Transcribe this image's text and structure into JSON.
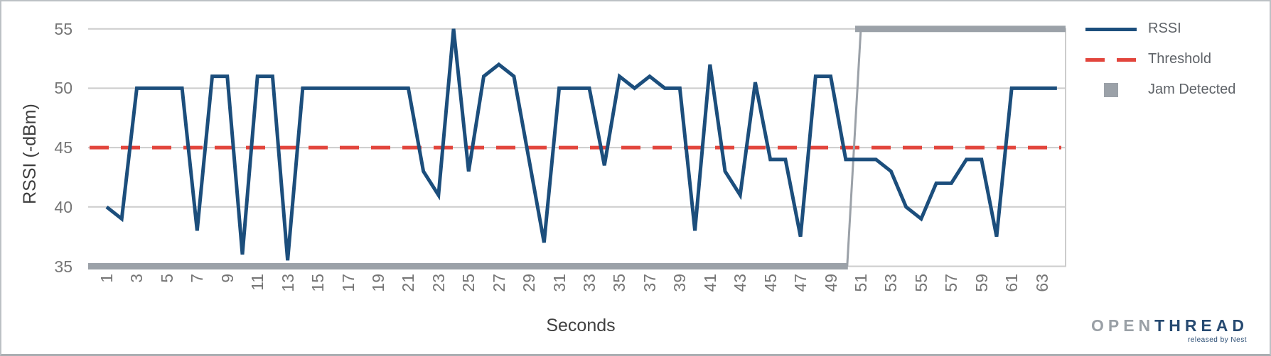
{
  "chart_data": {
    "type": "line",
    "title": "",
    "xlabel": "Seconds",
    "ylabel": "RSSI (-dBm)",
    "ylim": [
      35,
      55
    ],
    "y_ticks": [
      55,
      50,
      45,
      40,
      35
    ],
    "x_tick_labels": [
      1,
      3,
      5,
      7,
      9,
      11,
      13,
      15,
      17,
      19,
      21,
      23,
      25,
      27,
      29,
      31,
      33,
      35,
      37,
      39,
      41,
      43,
      45,
      47,
      49,
      51,
      53,
      55,
      57,
      59,
      61,
      63
    ],
    "grid": true,
    "legend_position": "right",
    "x": [
      1,
      2,
      3,
      4,
      5,
      6,
      7,
      8,
      9,
      10,
      11,
      12,
      13,
      14,
      15,
      16,
      17,
      18,
      19,
      20,
      21,
      22,
      23,
      24,
      25,
      26,
      27,
      28,
      29,
      30,
      31,
      32,
      33,
      34,
      35,
      36,
      37,
      38,
      39,
      40,
      41,
      42,
      43,
      44,
      45,
      46,
      47,
      48,
      49,
      50,
      51,
      52,
      53,
      54,
      55,
      56,
      57,
      58,
      59,
      60,
      61,
      62,
      63,
      64
    ],
    "series": [
      {
        "name": "RSSI",
        "type": "line",
        "color": "#1c4e7c",
        "values": [
          40,
          39,
          50,
          50,
          50,
          50,
          38,
          51,
          51,
          36,
          51,
          51,
          35.5,
          50,
          50,
          50,
          50,
          50,
          50,
          50,
          50,
          43,
          41,
          55,
          43,
          51,
          52,
          51,
          44,
          37,
          50,
          50,
          50,
          43.5,
          51,
          50,
          51,
          50,
          50,
          38,
          52,
          43,
          41,
          50.5,
          44,
          44,
          37.5,
          51,
          51,
          44,
          44,
          44,
          43,
          40,
          39,
          42,
          42,
          44,
          44,
          37.5,
          50,
          50,
          50,
          50
        ]
      },
      {
        "name": "Threshold",
        "type": "line",
        "style": "dashed",
        "color": "#e2453c",
        "values": [
          45,
          45,
          45,
          45,
          45,
          45,
          45,
          45,
          45,
          45,
          45,
          45,
          45,
          45,
          45,
          45,
          45,
          45,
          45,
          45,
          45,
          45,
          45,
          45,
          45,
          45,
          45,
          45,
          45,
          45,
          45,
          45,
          45,
          45,
          45,
          45,
          45,
          45,
          45,
          45,
          45,
          45,
          45,
          45,
          45,
          45,
          45,
          45,
          45,
          45,
          45,
          45,
          45,
          45,
          45,
          45,
          45,
          45,
          45,
          45,
          45,
          45,
          45,
          45
        ]
      },
      {
        "name": "Jam Detected",
        "type": "step-band",
        "color": "#9ba1a8",
        "values": [
          35,
          35,
          35,
          35,
          35,
          35,
          35,
          35,
          35,
          35,
          35,
          35,
          35,
          35,
          35,
          35,
          35,
          35,
          35,
          35,
          35,
          35,
          35,
          35,
          35,
          35,
          35,
          35,
          35,
          35,
          35,
          35,
          35,
          35,
          35,
          35,
          35,
          35,
          35,
          35,
          35,
          35,
          35,
          35,
          35,
          35,
          35,
          35,
          35,
          35,
          55,
          55,
          55,
          55,
          55,
          55,
          55,
          55,
          55,
          55,
          55,
          55,
          55,
          55
        ]
      }
    ]
  },
  "legend": {
    "items": [
      {
        "label": "RSSI",
        "swatch": "line-icon"
      },
      {
        "label": "Threshold",
        "swatch": "dashed-line-icon"
      },
      {
        "label": "Jam Detected",
        "swatch": "square-icon"
      }
    ]
  },
  "colors": {
    "rssi": "#1c4e7c",
    "threshold": "#e2453c",
    "jam": "#9ba1a8",
    "grid": "#cccccc",
    "tick_text": "#757575",
    "axis_title_text": "#3f3f3f",
    "legend_text": "#5f6368",
    "logo_open": "#9aa0a6",
    "logo_thread": "#274a71"
  },
  "logo": {
    "brand_open": "OPEN",
    "brand_thread": "THREAD",
    "tagline": "released by Nest"
  }
}
